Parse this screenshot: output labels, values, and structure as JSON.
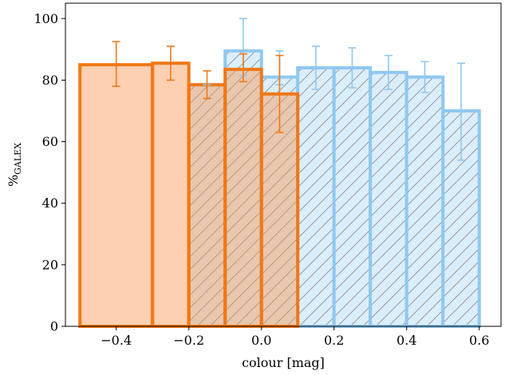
{
  "chart_data": {
    "type": "bar",
    "title": "",
    "xlabel": "colour [mag]",
    "ylabel": "%GALEX",
    "ylabel_main": "%",
    "ylabel_sub": "GALEX",
    "xlim": [
      -0.54,
      0.66
    ],
    "ylim": [
      0,
      105
    ],
    "xticks": [
      -0.4,
      -0.2,
      0.0,
      0.2,
      0.4,
      0.6
    ],
    "xtick_labels": [
      "−0.4",
      "−0.2",
      "0.0",
      "0.2",
      "0.4",
      "0.6"
    ],
    "yticks": [
      0,
      20,
      40,
      60,
      80,
      100
    ],
    "ytick_labels": [
      "0",
      "20",
      "40",
      "60",
      "80",
      "100"
    ],
    "grid": false,
    "legend": "none",
    "series": [
      {
        "color": "#90c8f0",
        "fill": "#dbeefc",
        "hatch": true,
        "bins": [
          {
            "x0": -0.2,
            "x1": -0.1,
            "value": 78.5,
            "err_low": 78.5,
            "err_high": 78.5
          },
          {
            "x0": -0.1,
            "x1": 0.0,
            "value": 89.5,
            "err_low": 81.5,
            "err_high": 100.0
          },
          {
            "x0": 0.0,
            "x1": 0.1,
            "value": 81.0,
            "err_low": 78.5,
            "err_high": 89.5
          },
          {
            "x0": 0.1,
            "x1": 0.2,
            "value": 84.0,
            "err_low": 77.0,
            "err_high": 91.0
          },
          {
            "x0": 0.2,
            "x1": 0.3,
            "value": 84.0,
            "err_low": 77.5,
            "err_high": 90.5
          },
          {
            "x0": 0.3,
            "x1": 0.4,
            "value": 82.5,
            "err_low": 77.0,
            "err_high": 88.0
          },
          {
            "x0": 0.4,
            "x1": 0.5,
            "value": 81.0,
            "err_low": 76.0,
            "err_high": 86.0
          },
          {
            "x0": 0.5,
            "x1": 0.6,
            "value": 70.0,
            "err_low": 54.0,
            "err_high": 85.5
          }
        ]
      },
      {
        "color": "#f07818",
        "fill": "rgba(248,150,80,0.45)",
        "hatch": false,
        "bins": [
          {
            "x0": -0.5,
            "x1": -0.3,
            "value": 85.0,
            "err_low": 78.0,
            "err_high": 92.5
          },
          {
            "x0": -0.3,
            "x1": -0.2,
            "value": 85.5,
            "err_low": 80.0,
            "err_high": 91.0
          },
          {
            "x0": -0.2,
            "x1": -0.1,
            "value": 78.5,
            "err_low": 74.0,
            "err_high": 83.0
          },
          {
            "x0": -0.1,
            "x1": 0.0,
            "value": 83.5,
            "err_low": 79.5,
            "err_high": 88.5
          },
          {
            "x0": 0.0,
            "x1": 0.1,
            "value": 75.5,
            "err_low": 63.0,
            "err_high": 88.0
          }
        ]
      }
    ]
  }
}
